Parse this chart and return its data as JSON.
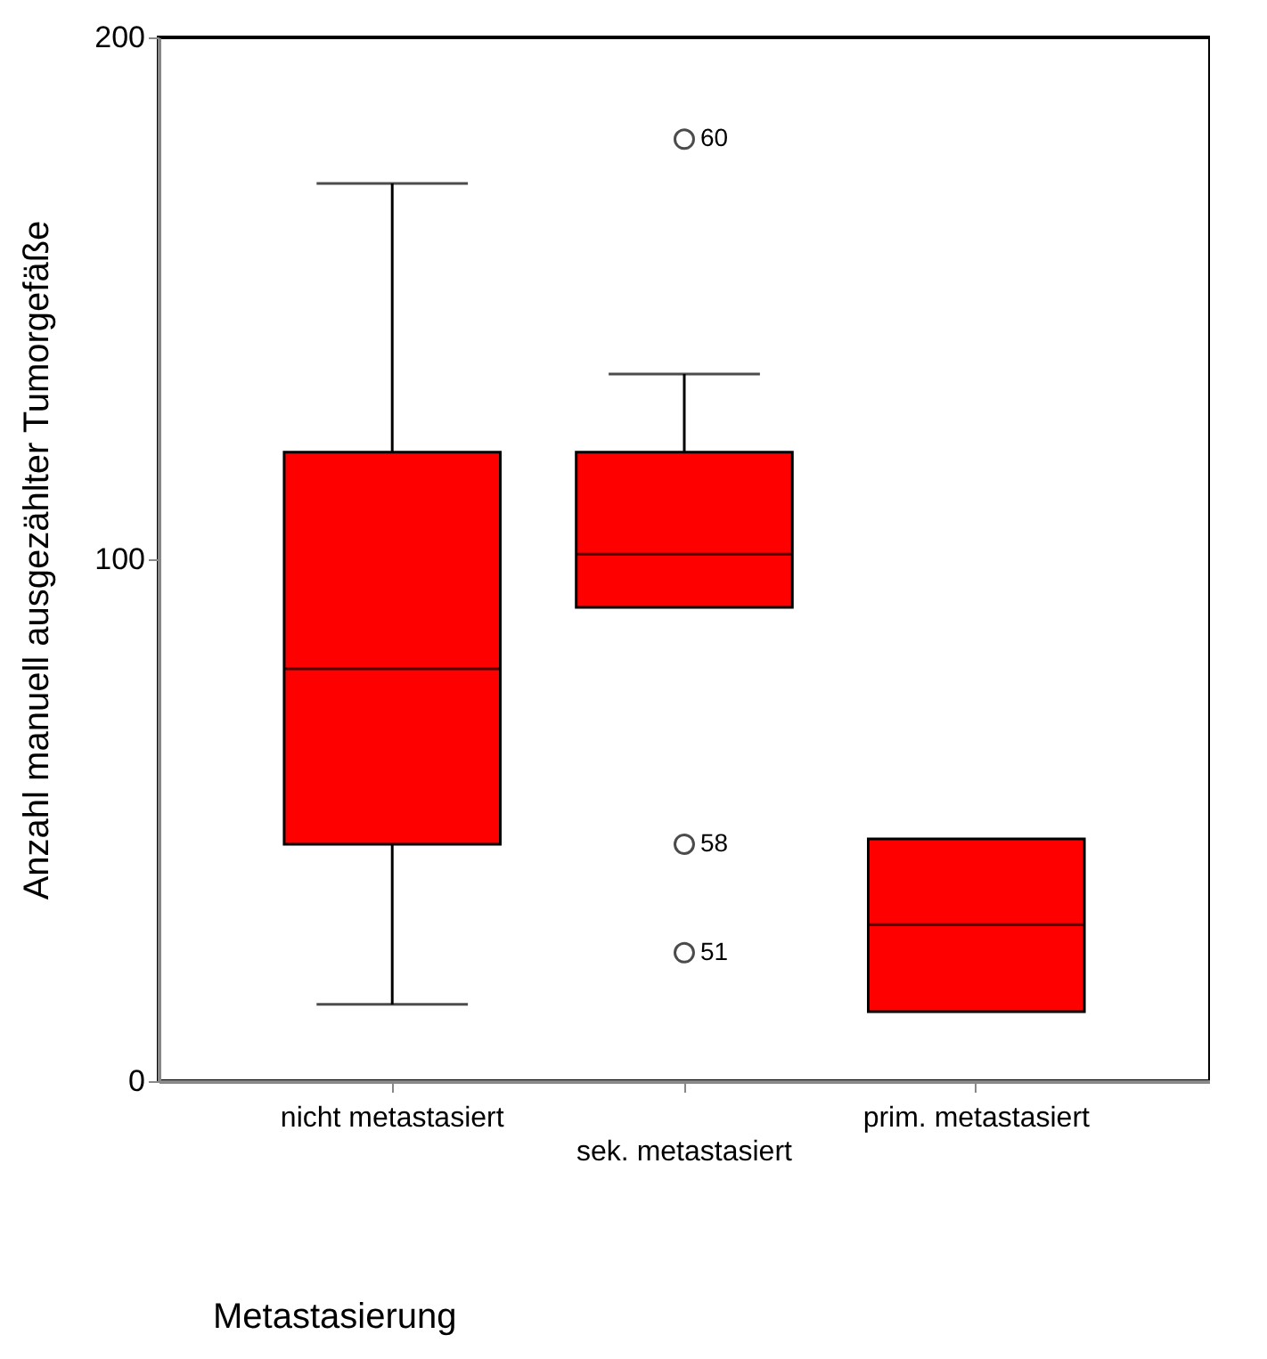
{
  "chart_data": {
    "type": "box",
    "xlabel": "Metastasierung",
    "ylabel": "Anzahl manuell ausgezählter Tumorgefäße",
    "categories": [
      "nicht metastasiert",
      "sek. metastasiert",
      "prim. metastasiert"
    ],
    "ylim": [
      0,
      200
    ],
    "yticks": [
      0,
      100,
      200
    ],
    "series": [
      {
        "color": "#ff0000",
        "boxes": [
          {
            "low": 14.7,
            "q1": 45.4,
            "median": 79,
            "q3": 120.5,
            "high": 172
          },
          {
            "low": 90.8,
            "q1": 90.8,
            "median": 101,
            "q3": 120.5,
            "high": 135.5
          },
          {
            "low": 13.3,
            "q1": 13.3,
            "median": 30,
            "q3": 46.4,
            "high": 46.4
          }
        ]
      },
      {
        "type": "scatter",
        "color": "#000000",
        "marker": "circle",
        "x": [
          "sek. metastasiert",
          "sek. metastasiert",
          "sek. metastasiert"
        ],
        "values": [
          180.5,
          45.4,
          24.6
        ]
      }
    ],
    "annotations": [
      {
        "text": "60",
        "x": "sek. metastasiert",
        "y": 180.5
      },
      {
        "text": "58",
        "x": "sek. metastasiert",
        "y": 45.4
      },
      {
        "text": "51",
        "x": "sek. metastasiert",
        "y": 24.6
      }
    ]
  }
}
